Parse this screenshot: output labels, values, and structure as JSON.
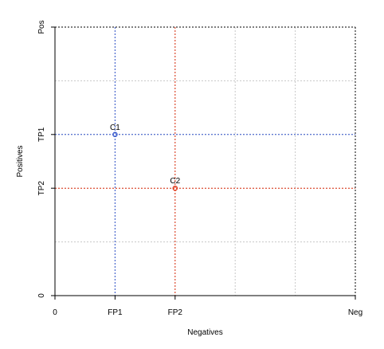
{
  "chart_data": {
    "type": "scatter",
    "xlabel": "Negatives",
    "ylabel": "Positives",
    "xlim": [
      0,
      5
    ],
    "ylim": [
      0,
      5
    ],
    "x_ticks": [
      {
        "value": 0,
        "label": "0"
      },
      {
        "value": 1,
        "label": "FP1"
      },
      {
        "value": 2,
        "label": "FP2"
      },
      {
        "value": 5,
        "label": "Neg"
      }
    ],
    "y_ticks": [
      {
        "value": 0,
        "label": "0"
      },
      {
        "value": 2,
        "label": "TP2"
      },
      {
        "value": 3,
        "label": "TP1"
      },
      {
        "value": 5,
        "label": "Pos"
      }
    ],
    "grid": true,
    "grid_x": [
      1,
      2,
      3,
      4
    ],
    "grid_y": [
      1,
      2,
      3,
      4
    ],
    "points": [
      {
        "label": "C1",
        "x": 1,
        "y": 3,
        "color": "#3355cc"
      },
      {
        "label": "C2",
        "x": 2,
        "y": 2,
        "color": "#e03010"
      }
    ],
    "colors": {
      "grid": "#c8c8c8",
      "axis": "#000000",
      "frame_dotted": "#000000"
    }
  }
}
